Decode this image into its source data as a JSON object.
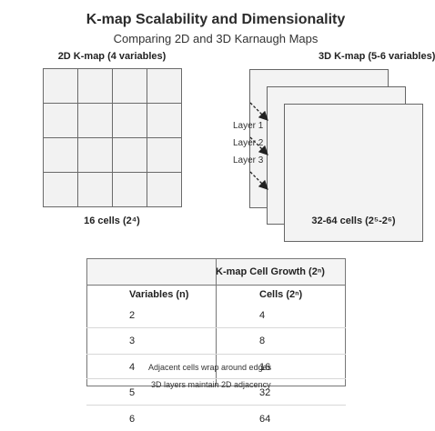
{
  "header": {
    "title": "K-map Scalability and Dimensionality",
    "subtitle": "Comparing 2D and 3D Karnaugh Maps"
  },
  "kmap2d": {
    "title": "2D K-map (4 variables)",
    "rows": 4,
    "cols": 4,
    "caption": "16 cells (2⁴)"
  },
  "kmap3d": {
    "title": "3D K-map (5-6 variables)",
    "layers": [
      "Layer 1",
      "Layer 2",
      "Layer 3"
    ],
    "caption": "32-64 cells (2⁵-2⁶)"
  },
  "growth_table": {
    "title": "K-map Cell Growth (2ⁿ)",
    "columns": [
      "Variables (n)",
      "Cells (2ⁿ)"
    ],
    "rows": [
      [
        "2",
        "4"
      ],
      [
        "3",
        "8"
      ],
      [
        "4",
        "16"
      ],
      [
        "5",
        "32"
      ],
      [
        "6",
        "64"
      ]
    ]
  },
  "notes": [
    "Adjacent cells wrap around edges",
    "3D layers maintain 2D adjacency"
  ],
  "colors": {
    "cell_fill": "#f2f2f2",
    "grid_line": "#6a6a6a",
    "arrow": "#222222"
  }
}
